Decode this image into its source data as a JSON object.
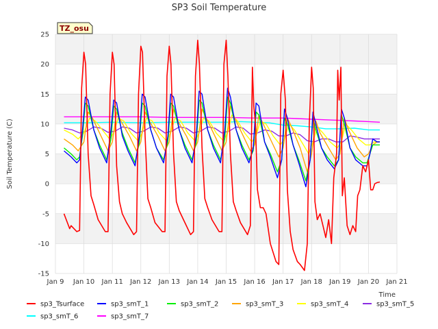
{
  "chart_data": {
    "type": "line",
    "title": "SP3 Soil Temperature",
    "xlabel": "Time",
    "ylabel": "Soil Temperature (C)",
    "annotation": "TZ_osu",
    "xlim": [
      9,
      21
    ],
    "ylim": [
      -15,
      25
    ],
    "xticks": [
      {
        "value": 9,
        "label": "Jan 9"
      },
      {
        "value": 10,
        "label": "Jan 10"
      },
      {
        "value": 11,
        "label": "Jan 11"
      },
      {
        "value": 12,
        "label": "Jan 12"
      },
      {
        "value": 13,
        "label": "Jan 13"
      },
      {
        "value": 14,
        "label": "Jan 14"
      },
      {
        "value": 15,
        "label": "Jan 15"
      },
      {
        "value": 16,
        "label": "Jan 16"
      },
      {
        "value": 17,
        "label": "Jan 17"
      },
      {
        "value": 18,
        "label": "Jan 18"
      },
      {
        "value": 19,
        "label": "Jan 19"
      },
      {
        "value": 20,
        "label": "Jan 20"
      },
      {
        "value": 21,
        "label": "Jan 21"
      }
    ],
    "yticks": [
      -15,
      -10,
      -5,
      0,
      5,
      10,
      15,
      20,
      25
    ],
    "grid": true,
    "legend_position": "bottom",
    "series": [
      {
        "name": "sp3_Tsurface",
        "color": "#ff0000",
        "width": 1.6,
        "x": [
          9.3,
          9.5,
          9.55,
          9.75,
          9.85,
          9.92,
          10.0,
          10.06,
          10.15,
          10.25,
          10.35,
          10.5,
          10.75,
          10.85,
          10.92,
          11.0,
          11.06,
          11.15,
          11.25,
          11.35,
          11.5,
          11.75,
          11.85,
          11.92,
          12.0,
          12.06,
          12.15,
          12.25,
          12.35,
          12.5,
          12.75,
          12.85,
          12.92,
          13.0,
          13.06,
          13.15,
          13.25,
          13.35,
          13.5,
          13.75,
          13.85,
          13.92,
          14.0,
          14.06,
          14.15,
          14.25,
          14.35,
          14.5,
          14.75,
          14.85,
          14.92,
          15.0,
          15.06,
          15.15,
          15.25,
          15.35,
          15.5,
          15.75,
          15.85,
          15.92,
          15.97,
          16.03,
          16.1,
          16.2,
          16.3,
          16.4,
          16.55,
          16.75,
          16.85,
          16.92,
          17.0,
          17.08,
          17.15,
          17.25,
          17.35,
          17.5,
          17.6,
          17.75,
          17.85,
          17.92,
          18.0,
          18.06,
          18.12,
          18.2,
          18.3,
          18.4,
          18.5,
          18.6,
          18.7,
          18.78,
          18.88,
          18.92,
          18.97,
          19.03,
          19.08,
          19.15,
          19.25,
          19.35,
          19.45,
          19.55,
          19.62,
          19.7,
          19.8,
          19.9,
          20.0,
          20.08,
          20.15,
          20.22,
          20.3,
          20.4
        ],
        "y": [
          -5,
          -7.5,
          -7,
          -8,
          -7.8,
          16,
          22,
          20,
          5,
          -2,
          -3.5,
          -6,
          -8,
          -8,
          15,
          22,
          20,
          3,
          -3,
          -5,
          -6.5,
          -8.5,
          -8,
          15,
          23,
          22,
          8,
          -2.5,
          -4,
          -6.5,
          -8,
          -8,
          18,
          23,
          20,
          5,
          -3,
          -4.5,
          -6,
          -8.5,
          -8,
          18,
          24,
          20,
          6,
          -2.5,
          -4,
          -6,
          -8,
          -8,
          20,
          24,
          18,
          5,
          -3,
          -4.5,
          -6.5,
          -8.5,
          -7,
          19.5,
          13,
          10,
          -1,
          -4,
          -4,
          -5,
          -10,
          -13,
          -13.5,
          15,
          19,
          14,
          -1,
          -8,
          -11,
          -13,
          -13.5,
          -14.5,
          -10,
          10,
          19.5,
          16,
          -3,
          -6,
          -5,
          -7,
          -9,
          -6,
          -10,
          1,
          5,
          19,
          14,
          19.5,
          -2,
          1,
          -7,
          -8.5,
          -7,
          -8,
          -2,
          -1,
          3,
          2,
          4,
          -1,
          -1,
          0,
          0.2,
          0.3
        ]
      },
      {
        "name": "sp3_smT_1",
        "color": "#0000ff",
        "width": 1.4,
        "x": [
          9.3,
          9.55,
          9.75,
          9.85,
          9.95,
          10.05,
          10.15,
          10.35,
          10.55,
          10.8,
          10.95,
          11.05,
          11.15,
          11.35,
          11.55,
          11.8,
          11.95,
          12.05,
          12.15,
          12.35,
          12.55,
          12.8,
          12.95,
          13.05,
          13.15,
          13.35,
          13.55,
          13.8,
          13.95,
          14.05,
          14.15,
          14.35,
          14.55,
          14.8,
          14.95,
          15.05,
          15.15,
          15.35,
          15.55,
          15.8,
          15.95,
          16.05,
          16.15,
          16.35,
          16.55,
          16.8,
          16.95,
          17.05,
          17.15,
          17.35,
          17.55,
          17.8,
          17.95,
          18.05,
          18.15,
          18.35,
          18.55,
          18.8,
          18.95,
          19.05,
          19.15,
          19.35,
          19.55,
          19.8,
          19.95,
          20.05,
          20.15,
          20.3,
          20.4
        ],
        "y": [
          5.5,
          4.5,
          3.5,
          4,
          9,
          14.5,
          14,
          9,
          6,
          3.5,
          9,
          14,
          13.5,
          8,
          5.5,
          3,
          8,
          15,
          14.5,
          9,
          6,
          3.5,
          8,
          15,
          14.5,
          9,
          6,
          3.5,
          8,
          15.5,
          15,
          9,
          6,
          3.5,
          9,
          16,
          14.5,
          9,
          6,
          3.5,
          6,
          13.5,
          13,
          7,
          4.5,
          1,
          4,
          12.5,
          11,
          6.5,
          3.5,
          -0.5,
          4,
          12,
          10,
          6,
          4,
          2.5,
          4,
          12.5,
          11,
          6,
          4,
          3,
          3,
          5,
          7.5,
          7,
          7
        ]
      },
      {
        "name": "sp3_smT_2",
        "color": "#00ee00",
        "width": 1.4,
        "x": [
          9.3,
          9.55,
          9.75,
          9.85,
          9.95,
          10.05,
          10.15,
          10.35,
          10.55,
          10.8,
          10.95,
          11.05,
          11.15,
          11.35,
          11.55,
          11.8,
          11.95,
          12.05,
          12.15,
          12.35,
          12.55,
          12.8,
          12.95,
          13.05,
          13.15,
          13.35,
          13.55,
          13.8,
          13.95,
          14.05,
          14.15,
          14.35,
          14.55,
          14.8,
          14.95,
          15.05,
          15.15,
          15.35,
          15.55,
          15.8,
          15.95,
          16.05,
          16.15,
          16.35,
          16.55,
          16.8,
          16.95,
          17.05,
          17.15,
          17.35,
          17.55,
          17.8,
          17.95,
          18.05,
          18.15,
          18.35,
          18.55,
          18.8,
          18.95,
          19.05,
          19.15,
          19.35,
          19.55,
          19.8,
          19.95,
          20.05,
          20.15,
          20.3,
          20.4
        ],
        "y": [
          6,
          5,
          4,
          4.5,
          8,
          13.5,
          13,
          9,
          6.5,
          4,
          7.5,
          13,
          12.5,
          8.5,
          6,
          3.5,
          7,
          13.5,
          13,
          9,
          6,
          4,
          7,
          13.5,
          13,
          9,
          6.5,
          4,
          7,
          14,
          13.5,
          9,
          6.5,
          4,
          7.5,
          14.5,
          13.5,
          9,
          6.5,
          4,
          5.5,
          12,
          11.5,
          7,
          5,
          2,
          4,
          11,
          10,
          6.5,
          4,
          0.5,
          4,
          11,
          9,
          6,
          4.5,
          3,
          4,
          11.5,
          10,
          6,
          4.5,
          3.5,
          3.5,
          5,
          6.5,
          6.5,
          6.5
        ]
      },
      {
        "name": "sp3_smT_3",
        "color": "#ffa500",
        "width": 1.4,
        "x": [
          9.3,
          9.6,
          9.8,
          10.0,
          10.15,
          10.3,
          10.6,
          10.85,
          11.0,
          11.15,
          11.3,
          11.6,
          11.85,
          12.0,
          12.15,
          12.3,
          12.6,
          12.85,
          13.0,
          13.15,
          13.3,
          13.6,
          13.85,
          14.0,
          14.15,
          14.3,
          14.6,
          14.85,
          15.0,
          15.15,
          15.3,
          15.6,
          15.85,
          16.0,
          16.15,
          16.3,
          16.6,
          16.85,
          17.0,
          17.15,
          17.3,
          17.6,
          17.85,
          18.0,
          18.15,
          18.3,
          18.6,
          18.85,
          19.0,
          19.15,
          19.3,
          19.6,
          19.85,
          20.0,
          20.15,
          20.3,
          20.4
        ],
        "y": [
          7.5,
          6.5,
          5.5,
          7,
          12,
          11,
          8,
          5.5,
          7,
          12,
          10.5,
          8,
          5.5,
          7,
          12,
          10.5,
          8,
          5.5,
          7,
          12.5,
          10.5,
          8,
          5.5,
          7,
          12.5,
          11,
          8,
          5.5,
          7,
          13,
          11,
          8,
          5.5,
          6.5,
          11.5,
          10,
          7,
          4.5,
          6,
          11,
          9.5,
          6,
          2,
          5,
          10.5,
          8.5,
          6,
          4,
          5,
          11,
          9,
          6,
          4.5,
          5,
          6.5,
          7,
          7
        ]
      },
      {
        "name": "sp3_smT_4",
        "color": "#ffff00",
        "width": 1.4,
        "x": [
          9.3,
          9.6,
          9.8,
          10.0,
          10.2,
          10.4,
          10.65,
          10.9,
          11.05,
          11.2,
          11.4,
          11.65,
          11.9,
          12.05,
          12.2,
          12.4,
          12.65,
          12.9,
          13.05,
          13.2,
          13.4,
          13.65,
          13.9,
          14.05,
          14.2,
          14.4,
          14.65,
          14.9,
          15.05,
          15.2,
          15.4,
          15.65,
          15.9,
          16.05,
          16.2,
          16.4,
          16.65,
          16.9,
          17.05,
          17.2,
          17.4,
          17.65,
          17.9,
          18.05,
          18.2,
          18.4,
          18.65,
          18.9,
          19.05,
          19.2,
          19.4,
          19.65,
          19.9,
          20.05,
          20.2,
          20.4
        ],
        "y": [
          9,
          8.3,
          7.5,
          8.5,
          11,
          10.5,
          9,
          7.5,
          8.5,
          11,
          10.5,
          8.5,
          7.2,
          8.5,
          11,
          10.5,
          8.5,
          7.2,
          8.5,
          11,
          10.5,
          8.5,
          7.2,
          8.5,
          11,
          10.5,
          8.5,
          7.2,
          8.5,
          11.5,
          10.5,
          8.5,
          7,
          8,
          10.5,
          10,
          8,
          6.5,
          7.5,
          10,
          9,
          7,
          5,
          7,
          9.5,
          8.5,
          7,
          6,
          7,
          10,
          9,
          7.5,
          6.5,
          6.5,
          7,
          7
        ]
      },
      {
        "name": "sp3_smT_5",
        "color": "#8a2be2",
        "width": 1.4,
        "x": [
          9.3,
          9.6,
          9.85,
          10.1,
          10.35,
          10.6,
          10.85,
          11.1,
          11.35,
          11.6,
          11.85,
          12.1,
          12.35,
          12.6,
          12.85,
          13.1,
          13.35,
          13.6,
          13.85,
          14.1,
          14.35,
          14.6,
          14.85,
          15.1,
          15.35,
          15.6,
          15.85,
          16.1,
          16.35,
          16.6,
          16.85,
          17.1,
          17.35,
          17.6,
          17.85,
          18.1,
          18.35,
          18.6,
          18.85,
          19.1,
          19.35,
          19.6,
          19.85,
          20.1,
          20.4
        ],
        "y": [
          9.3,
          9,
          8.5,
          8.8,
          9.5,
          9.3,
          8.6,
          8.8,
          9.5,
          9.3,
          8.5,
          8.8,
          9.5,
          9.3,
          8.5,
          8.8,
          9.5,
          9.3,
          8.5,
          8.8,
          9.5,
          9.3,
          8.5,
          8.8,
          9.5,
          9.3,
          8.3,
          8.5,
          9,
          8.8,
          8,
          8,
          8.5,
          8.2,
          7.2,
          7,
          7.5,
          7.5,
          7,
          7,
          8,
          7.8,
          7.5,
          7.5,
          7.5
        ]
      },
      {
        "name": "sp3_smT_6",
        "color": "#00ffff",
        "width": 1.4,
        "x": [
          9.3,
          10.0,
          11.0,
          12.0,
          13.0,
          14.0,
          15.0,
          15.5,
          16.0,
          16.5,
          17.0,
          17.5,
          18.0,
          18.5,
          19.0,
          19.5,
          20.0,
          20.4
        ],
        "y": [
          10.2,
          10.2,
          10.3,
          10.2,
          10.3,
          10.3,
          10.3,
          10.4,
          10.3,
          10.2,
          9.8,
          9.7,
          9.5,
          9.2,
          9.2,
          9.3,
          9,
          9
        ]
      },
      {
        "name": "sp3_smT_7",
        "color": "#ff00ff",
        "width": 1.4,
        "x": [
          9.3,
          10.0,
          11.0,
          12.0,
          13.0,
          14.0,
          15.0,
          16.0,
          16.5,
          17.0,
          17.5,
          18.0,
          18.5,
          19.0,
          19.5,
          20.0,
          20.4
        ],
        "y": [
          11.2,
          11.2,
          11.2,
          11.2,
          11.1,
          11.1,
          11.1,
          11,
          11,
          11,
          10.9,
          10.8,
          10.7,
          10.6,
          10.5,
          10.4,
          10.3
        ]
      }
    ]
  }
}
